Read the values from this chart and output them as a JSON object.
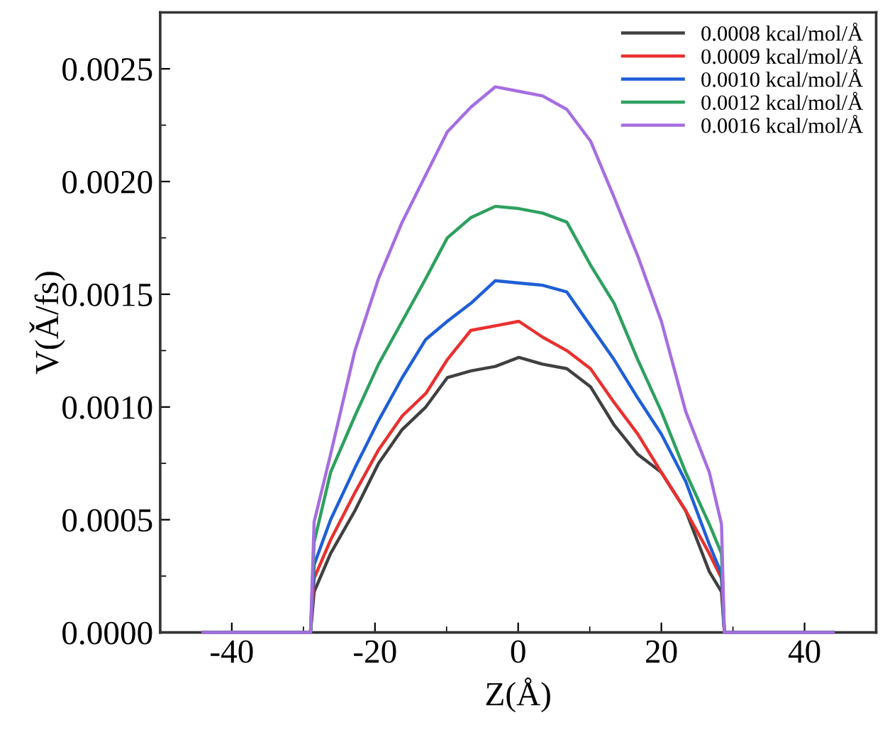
{
  "chart_data": {
    "type": "line",
    "xlabel": "Z(Å)",
    "ylabel": "V(Ǎ/fs)",
    "x": [
      -44,
      -29,
      -28.5,
      -26.2,
      -22.8,
      -19.5,
      -16.2,
      -12.9,
      -9.9,
      -6.6,
      -3.2,
      0.1,
      3.4,
      6.8,
      10.1,
      13.4,
      16.7,
      20,
      23.4,
      26.7,
      28.4,
      28.8,
      44
    ],
    "series": [
      {
        "name": "0.0008 kcal/mol/Å",
        "color": "#404040",
        "values": [
          0,
          0,
          0.00018,
          0.00035,
          0.00054,
          0.00075,
          0.0009,
          0.001,
          0.00113,
          0.00116,
          0.00118,
          0.00122,
          0.00119,
          0.00117,
          0.00109,
          0.00092,
          0.00079,
          0.00071,
          0.00054,
          0.00027,
          0.00018,
          0,
          0
        ]
      },
      {
        "name": "0.0009 kcal/mol/Å",
        "color": "#e8312f",
        "values": [
          0,
          0,
          0.00024,
          0.00041,
          0.00062,
          0.00081,
          0.00096,
          0.00106,
          0.00121,
          0.00134,
          0.00136,
          0.00138,
          0.00131,
          0.00125,
          0.00117,
          0.00102,
          0.00088,
          0.00071,
          0.00054,
          0.00035,
          0.00024,
          0,
          0
        ]
      },
      {
        "name": "0.0010 kcal/mol/Å",
        "color": "#1f5fd6",
        "values": [
          0,
          0,
          0.0003,
          0.0005,
          0.00073,
          0.00094,
          0.00113,
          0.0013,
          0.00138,
          0.00146,
          0.00156,
          0.00155,
          0.00154,
          0.00151,
          0.00136,
          0.00121,
          0.00104,
          0.00088,
          0.00067,
          0.00039,
          0.00026,
          0,
          0
        ]
      },
      {
        "name": "0.0012 kcal/mol/Å",
        "color": "#2ea05f",
        "values": [
          0,
          0,
          0.0004,
          0.00071,
          0.00096,
          0.00119,
          0.00138,
          0.00157,
          0.00175,
          0.00184,
          0.00189,
          0.00188,
          0.00186,
          0.00182,
          0.00163,
          0.00146,
          0.00121,
          0.00098,
          0.00071,
          0.00048,
          0.00035,
          0,
          0
        ]
      },
      {
        "name": "0.0016 kcal/mol/Å",
        "color": "#a66ee0",
        "values": [
          0,
          0,
          0.00049,
          0.00079,
          0.00125,
          0.00157,
          0.00182,
          0.00203,
          0.00222,
          0.00233,
          0.00242,
          0.0024,
          0.00238,
          0.00232,
          0.00218,
          0.00193,
          0.00167,
          0.00138,
          0.00098,
          0.00071,
          0.00048,
          0,
          0
        ]
      }
    ],
    "xlim": [
      -50,
      50
    ],
    "xticks": [
      -40,
      -20,
      0,
      20,
      40
    ],
    "ylim": [
      0,
      0.00275
    ],
    "yticks": [
      {
        "value": 0,
        "label": "0.0000"
      },
      {
        "value": 0.0005,
        "label": "0.0005"
      },
      {
        "value": 0.001,
        "label": "0.0010"
      },
      {
        "value": 0.0015,
        "label": "0.0015"
      },
      {
        "value": 0.002,
        "label": "0.0020"
      },
      {
        "value": 0.0025,
        "label": "0.0025"
      }
    ],
    "grid": false,
    "legend": "top right",
    "marker": "none",
    "line_style": "solid"
  }
}
